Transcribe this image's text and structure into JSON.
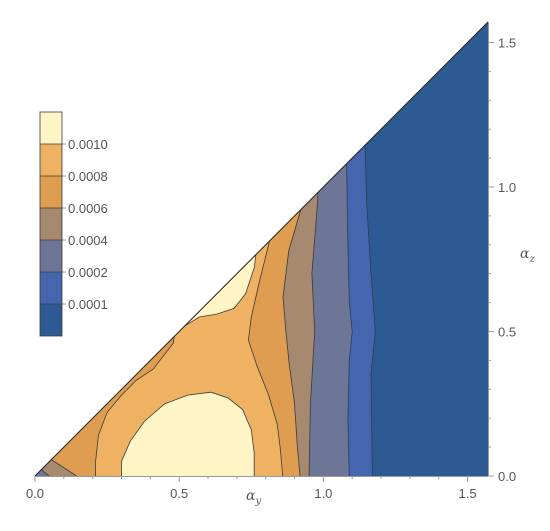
{
  "chart_data": {
    "type": "contour",
    "xlabel_base": "α",
    "xlabel_sub": "y",
    "ylabel_base": "α",
    "ylabel_sub": "z",
    "xlim": [
      0,
      1.5708
    ],
    "ylim": [
      0,
      1.5708
    ],
    "domain": "α_z ≤ α_y",
    "x_ticks": [
      "0.0",
      "0.5",
      "1.0",
      "1.5"
    ],
    "y_ticks": [
      "0.0",
      "0.5",
      "1.0",
      "1.5"
    ],
    "legend": [
      {
        "label": "0.0010",
        "color": "#FFF4C6"
      },
      {
        "label": "0.0008",
        "color": "#EFB262"
      },
      {
        "label": "0.0006",
        "color": "#DE9D50"
      },
      {
        "label": "0.0004",
        "color": "#A6896E"
      },
      {
        "label": "0.0002",
        "color": "#6E7697"
      },
      {
        "label": "0.0001",
        "color": "#4565AE"
      },
      {
        "label": "",
        "color": "#2D5A92"
      }
    ],
    "levels": [
      0.0001,
      0.0002,
      0.0004,
      0.0006,
      0.0008,
      0.001
    ],
    "legend_placement": "left",
    "grid": false
  }
}
